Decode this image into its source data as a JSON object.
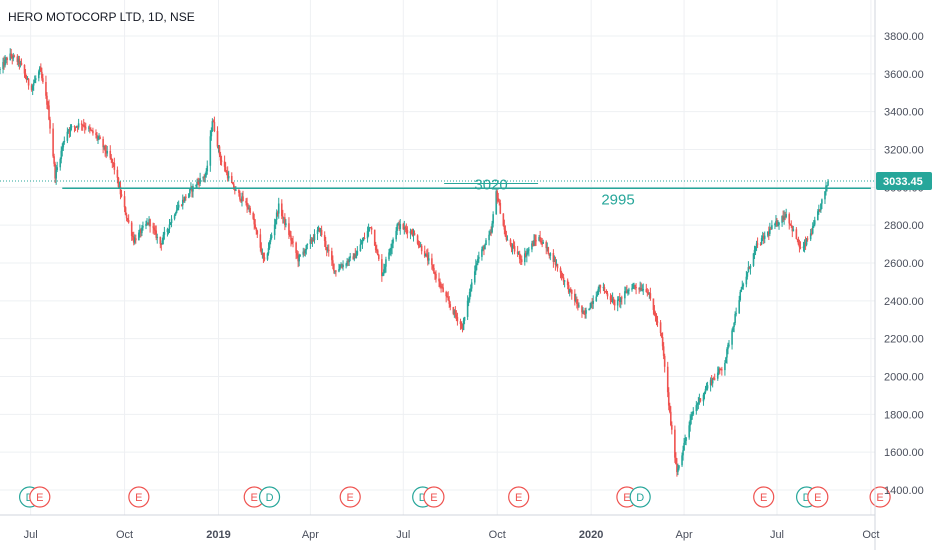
{
  "title": "HERO MOTOCORP LTD, 1D, NSE",
  "chart_data": {
    "type": "candlestick",
    "title": "HERO MOTOCORP LTD, 1D, NSE",
    "symbol": "HERO MOTOCORP LTD",
    "interval": "1D",
    "exchange": "NSE",
    "ylim": [
      1300,
      3960
    ],
    "y_ticks": [
      "3800.00",
      "3600.00",
      "3400.00",
      "3200.00",
      "3000.00",
      "2800.00",
      "2600.00",
      "2400.00",
      "2200.00",
      "2000.00",
      "1800.00",
      "1600.00",
      "1400.00"
    ],
    "y_tick_values": [
      3800,
      3600,
      3400,
      3200,
      3000,
      2800,
      2600,
      2400,
      2200,
      2000,
      1800,
      1600,
      1400
    ],
    "x_ticks": [
      "Jul",
      "Oct",
      "2019",
      "Apr",
      "Jul",
      "Oct",
      "2020",
      "Apr",
      "Jul",
      "Oct"
    ],
    "x_tick_dates": [
      "2018-07-01",
      "2018-10-01",
      "2019-01-01",
      "2019-04-01",
      "2019-07-01",
      "2019-10-01",
      "2020-01-01",
      "2020-04-01",
      "2020-07-01",
      "2020-10-01"
    ],
    "x_range": [
      "2018-06-01",
      "2020-10-05"
    ],
    "last_price": "3033.45",
    "last_price_value": 3033.45,
    "grid": true,
    "colors": {
      "up": "#26a69a",
      "down": "#ef5350",
      "line": "#26a69a",
      "grid": "#eef0f3"
    },
    "horizontal_lines": [
      {
        "label": "2995",
        "value": 2995,
        "start": "2018-08-01",
        "end": "2020-10-01"
      },
      {
        "label": "3020",
        "value": 3020,
        "start": "2019-08-10",
        "end": "2019-11-10"
      }
    ],
    "ohlc_path": [
      [
        "2018-06-01",
        3620
      ],
      [
        "2018-06-10",
        3700
      ],
      [
        "2018-06-20",
        3660
      ],
      [
        "2018-07-01",
        3520
      ],
      [
        "2018-07-10",
        3620
      ],
      [
        "2018-07-18",
        3420
      ],
      [
        "2018-07-25",
        3060
      ],
      [
        "2018-08-05",
        3300
      ],
      [
        "2018-08-20",
        3340
      ],
      [
        "2018-09-05",
        3260
      ],
      [
        "2018-09-20",
        3120
      ],
      [
        "2018-10-01",
        2880
      ],
      [
        "2018-10-10",
        2720
      ],
      [
        "2018-10-25",
        2820
      ],
      [
        "2018-11-05",
        2700
      ],
      [
        "2018-11-20",
        2880
      ],
      [
        "2018-12-10",
        3020
      ],
      [
        "2018-12-20",
        3070
      ],
      [
        "2018-12-26",
        3360
      ],
      [
        "2019-01-03",
        3150
      ],
      [
        "2019-01-15",
        3000
      ],
      [
        "2019-02-01",
        2880
      ],
      [
        "2019-02-15",
        2600
      ],
      [
        "2019-03-01",
        2900
      ],
      [
        "2019-03-20",
        2620
      ],
      [
        "2019-04-10",
        2780
      ],
      [
        "2019-04-25",
        2560
      ],
      [
        "2019-05-15",
        2640
      ],
      [
        "2019-05-30",
        2800
      ],
      [
        "2019-06-10",
        2540
      ],
      [
        "2019-06-25",
        2800
      ],
      [
        "2019-07-10",
        2760
      ],
      [
        "2019-07-25",
        2620
      ],
      [
        "2019-08-15",
        2380
      ],
      [
        "2019-08-28",
        2260
      ],
      [
        "2019-09-10",
        2600
      ],
      [
        "2019-09-25",
        2760
      ],
      [
        "2019-09-30",
        2980
      ],
      [
        "2019-10-10",
        2720
      ],
      [
        "2019-10-25",
        2620
      ],
      [
        "2019-11-10",
        2740
      ],
      [
        "2019-11-25",
        2620
      ],
      [
        "2019-12-10",
        2460
      ],
      [
        "2019-12-25",
        2320
      ],
      [
        "2020-01-10",
        2480
      ],
      [
        "2020-01-25",
        2380
      ],
      [
        "2020-02-10",
        2480
      ],
      [
        "2020-02-25",
        2460
      ],
      [
        "2020-03-10",
        2200
      ],
      [
        "2020-03-20",
        1700
      ],
      [
        "2020-03-25",
        1500
      ],
      [
        "2020-04-10",
        1820
      ],
      [
        "2020-04-25",
        1960
      ],
      [
        "2020-05-10",
        2060
      ],
      [
        "2020-05-25",
        2420
      ],
      [
        "2020-06-10",
        2680
      ],
      [
        "2020-06-25",
        2780
      ],
      [
        "2020-07-10",
        2860
      ],
      [
        "2020-07-25",
        2660
      ],
      [
        "2020-08-05",
        2780
      ],
      [
        "2020-08-15",
        2940
      ],
      [
        "2020-08-20",
        3033
      ]
    ],
    "event_markers": [
      {
        "date": "2018-06-30",
        "label": "D",
        "kind": "dividend"
      },
      {
        "date": "2018-07-10",
        "label": "E",
        "kind": "earnings"
      },
      {
        "date": "2018-10-15",
        "label": "E",
        "kind": "earnings"
      },
      {
        "date": "2019-02-05",
        "label": "E",
        "kind": "earnings"
      },
      {
        "date": "2019-02-20",
        "label": "D",
        "kind": "dividend"
      },
      {
        "date": "2019-05-10",
        "label": "E",
        "kind": "earnings"
      },
      {
        "date": "2019-07-20",
        "label": "D",
        "kind": "dividend"
      },
      {
        "date": "2019-07-31",
        "label": "E",
        "kind": "earnings"
      },
      {
        "date": "2019-10-22",
        "label": "E",
        "kind": "earnings"
      },
      {
        "date": "2020-02-05",
        "label": "E",
        "kind": "earnings"
      },
      {
        "date": "2020-02-18",
        "label": "D",
        "kind": "dividend"
      },
      {
        "date": "2020-06-18",
        "label": "E",
        "kind": "earnings"
      },
      {
        "date": "2020-07-30",
        "label": "D",
        "kind": "dividend"
      },
      {
        "date": "2020-08-10",
        "label": "E",
        "kind": "earnings"
      },
      {
        "date": "2020-10-10",
        "label": "E",
        "kind": "earnings"
      }
    ]
  }
}
